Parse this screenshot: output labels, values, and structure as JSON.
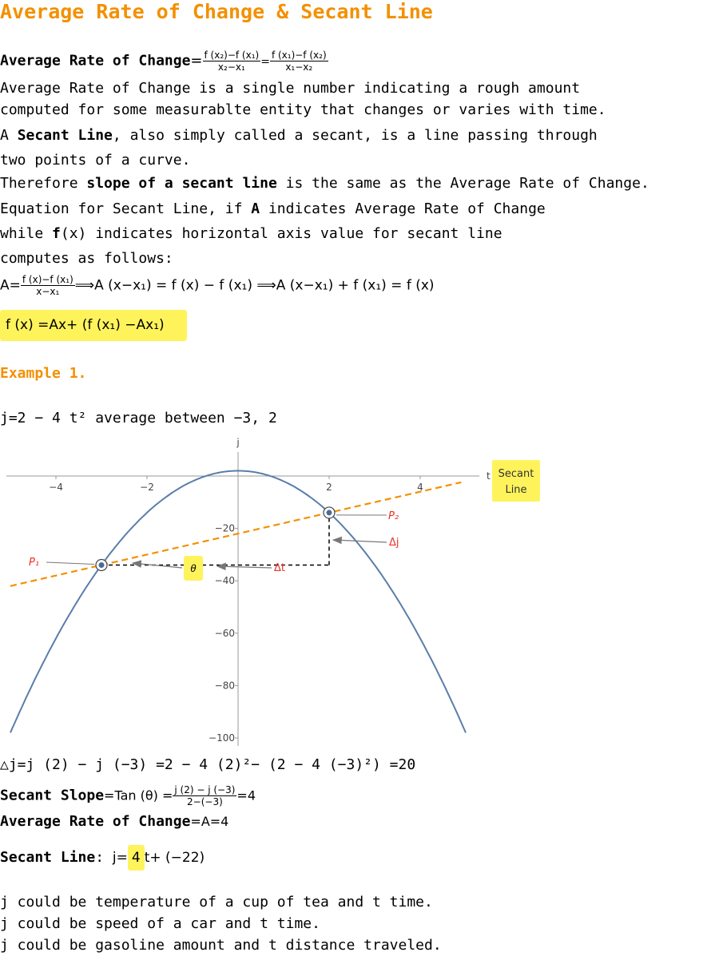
{
  "title": "Average Rate of Change & Secant Line",
  "def_label": "Average Rate of Change",
  "def_eq": "=",
  "def_frac1_num": "f (x₂)−f (x₁)",
  "def_frac1_den": "x₂−x₁",
  "def_mid_eq": "=",
  "def_frac2_num": "f (x₁)−f (x₂)",
  "def_frac2_den": "x₁−x₂",
  "para1_line1": "Average Rate of Change is a single number indicating a rough amount",
  "para1_line2": "computed for some measurablte entity that changes or varies with time.",
  "para2_pre": "A ",
  "para2_bold": "Secant Line",
  "para2_post": ", also simply called a secant, is a line passing through",
  "para2_line2": "two points of a curve.",
  "para3_pre": "Therefore ",
  "para3_bold": "slope of a secant line",
  "para3_post": " is the same as the Average Rate of Change.",
  "para4_pre": "Equation for Secant Line, if ",
  "para4_bold": "A",
  "para4_post": " indicates Average Rate of Change",
  "para5_pre": "while ",
  "para5_bold": "f",
  "para5_post": "(x) indicates horizontal axis value for secant line",
  "para6": "computes as follows:",
  "eqA_lhs": "A=",
  "eqA_num": "f (x)−f (x₁)",
  "eqA_den": "x−x₁",
  "eqA_rest": "⟹A (x−x₁) = f (x) − f (x₁) ⟹A (x−x₁) + f (x₁) = f (x)",
  "boxed_eq": "f (x) =Ax+ (f (x₁) −Ax₁)",
  "example_heading": "Example 1.",
  "example_func": "j=2 − 4 t² average between −3, 2",
  "chart_data": {
    "type": "line",
    "function": "j = 2 - 4 t^2",
    "xlabel": "t",
    "ylabel": "j",
    "xlim": [
      -5,
      5
    ],
    "ylim": [
      -100,
      4
    ],
    "xticks": [
      -4,
      -2,
      2,
      4
    ],
    "yticks": [
      -20,
      -40,
      -60,
      -80,
      -100
    ],
    "series": [
      {
        "values_from": "j = 2 - 4 t^2",
        "color": "#5a7eaa"
      },
      {
        "name": "Secant Line",
        "slope": 4,
        "intercept": -22,
        "color": "#f39000",
        "style": "dashed"
      }
    ],
    "points": [
      {
        "label": "P₁",
        "t": -3,
        "j": -34
      },
      {
        "label": "P₂",
        "t": 2,
        "j": -14
      }
    ],
    "annotations": {
      "theta": "θ",
      "delta_t": "Δt",
      "delta_j": "Δj"
    },
    "legend_label": "Secant\nLine",
    "legend_lines": [
      "Secant",
      "Line"
    ],
    "colors": {
      "curve": "#5a7eaa",
      "secant": "#f39000",
      "annot": "#e8322a",
      "highlight": "#fff35c"
    }
  },
  "calc_delta": "△j=j (2) − j (−3) =2 − 4 (2)²− (2 − 4 (−3)²) =20",
  "slope_label": "Secant Slope",
  "slope_eq_pre": "=Tan (θ) =",
  "slope_num": "j (2) − j (−3)",
  "slope_den": "2−(−3)",
  "slope_eq_post": "=4",
  "avg_label": "Average Rate of Change",
  "avg_val": "=A=4",
  "secant_label": "Secant Line",
  "secant_colon": ":",
  "secant_pre": "j=",
  "secant_hl": "4",
  "secant_post": "t+ (−22)",
  "note1": "j could be temperature of a cup of tea and t time.",
  "note2": "j could be speed of a car and t time.",
  "note3": "j could be gasoline amount and t distance traveled."
}
